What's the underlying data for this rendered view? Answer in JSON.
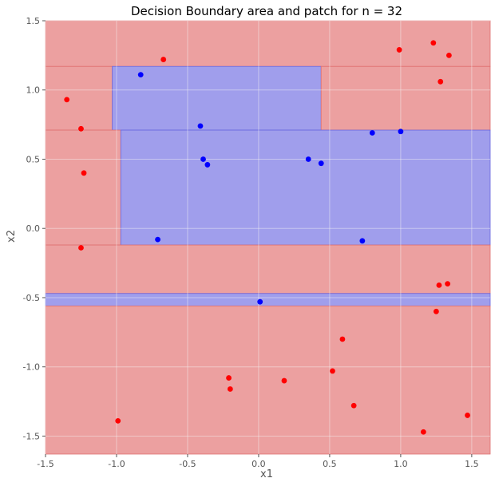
{
  "chart_data": {
    "type": "scatter",
    "title": "Decision Boundary area and patch for n = 32",
    "xlabel": "x1",
    "ylabel": "x2",
    "xlim": [
      -1.5,
      1.63
    ],
    "ylim": [
      -1.63,
      1.5
    ],
    "xticks": [
      -1.5,
      -1.0,
      -0.5,
      0.0,
      0.5,
      1.0,
      1.5
    ],
    "xtick_labels": [
      "-1.5",
      "-1.0",
      "-0.5",
      "0.0",
      "0.5",
      "1.0",
      "1.5"
    ],
    "yticks": [
      -1.5,
      -1.0,
      -0.5,
      0.0,
      0.5,
      1.0,
      1.5
    ],
    "ytick_labels": [
      "-1.5",
      "-1.0",
      "-0.5",
      "0.0",
      "0.5",
      "1.0",
      "1.5"
    ],
    "grid": true,
    "colors": {
      "background": "#ECA0A0",
      "red_region": "#ECA0A0",
      "blue_region": "#A09EEC",
      "red_points": "#FF0000",
      "blue_points": "#0000FF",
      "grid": "#F6F6F6"
    },
    "regions": [
      {
        "class": "red",
        "x": [
          -1.5,
          1.63
        ],
        "y": [
          1.17,
          1.5
        ]
      },
      {
        "class": "red",
        "x": [
          -1.5,
          -1.03
        ],
        "y": [
          0.71,
          1.17
        ]
      },
      {
        "class": "blue",
        "x": [
          -1.03,
          0.44
        ],
        "y": [
          0.71,
          1.17
        ]
      },
      {
        "class": "red",
        "x": [
          0.44,
          1.63
        ],
        "y": [
          0.71,
          1.17
        ]
      },
      {
        "class": "red",
        "x": [
          -1.5,
          -0.97
        ],
        "y": [
          -0.12,
          0.71
        ]
      },
      {
        "class": "blue",
        "x": [
          -0.97,
          1.63
        ],
        "y": [
          -0.12,
          0.71
        ]
      },
      {
        "class": "red",
        "x": [
          -1.5,
          1.63
        ],
        "y": [
          -0.47,
          -0.12
        ]
      },
      {
        "class": "blue",
        "x": [
          -1.5,
          1.63
        ],
        "y": [
          -0.56,
          -0.47
        ]
      },
      {
        "class": "red",
        "x": [
          -1.5,
          1.63
        ],
        "y": [
          -1.63,
          -0.56
        ]
      }
    ],
    "series": [
      {
        "color": "red",
        "points": [
          [
            -0.67,
            1.22
          ],
          [
            0.99,
            1.29
          ],
          [
            1.23,
            1.34
          ],
          [
            1.34,
            1.25
          ],
          [
            1.28,
            1.06
          ],
          [
            -1.35,
            0.93
          ],
          [
            -1.25,
            0.72
          ],
          [
            -1.23,
            0.4
          ],
          [
            -1.25,
            -0.14
          ],
          [
            1.27,
            -0.41
          ],
          [
            1.33,
            -0.4
          ],
          [
            1.25,
            -0.6
          ],
          [
            0.59,
            -0.8
          ],
          [
            0.52,
            -1.03
          ],
          [
            -0.21,
            -1.08
          ],
          [
            -0.2,
            -1.16
          ],
          [
            0.18,
            -1.1
          ],
          [
            0.67,
            -1.28
          ],
          [
            -0.99,
            -1.39
          ],
          [
            1.16,
            -1.47
          ],
          [
            1.47,
            -1.35
          ]
        ]
      },
      {
        "color": "blue",
        "points": [
          [
            -0.83,
            1.11
          ],
          [
            -0.41,
            0.74
          ],
          [
            -0.39,
            0.5
          ],
          [
            -0.36,
            0.46
          ],
          [
            0.35,
            0.5
          ],
          [
            0.44,
            0.47
          ],
          [
            0.8,
            0.69
          ],
          [
            1.0,
            0.7
          ],
          [
            -0.71,
            -0.08
          ],
          [
            0.73,
            -0.09
          ],
          [
            0.01,
            -0.53
          ]
        ]
      }
    ]
  }
}
